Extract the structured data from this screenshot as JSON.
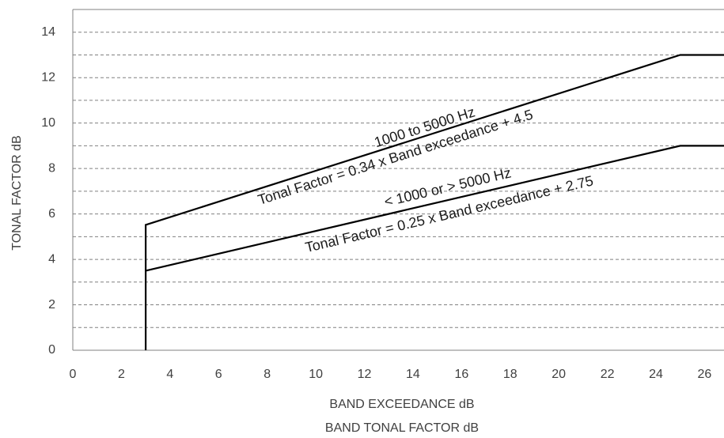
{
  "chart_data": {
    "type": "line",
    "x_label_lines": [
      "BAND EXCEEDANCE dB",
      "BAND TONAL FACTOR dB"
    ],
    "y_label": "TONAL FACTOR dB",
    "xlim": [
      0,
      26.8
    ],
    "ylim": [
      0,
      15
    ],
    "xticks": [
      0,
      2,
      4,
      6,
      8,
      10,
      12,
      14,
      16,
      18,
      20,
      22,
      24,
      26
    ],
    "yticks": [
      0,
      2,
      4,
      6,
      8,
      10,
      12,
      14
    ],
    "minor_yticks": [
      1,
      3,
      5,
      7,
      9,
      11,
      13
    ],
    "grid": true,
    "series": [
      {
        "color": "#000000",
        "x": [
          3,
          3,
          25,
          26.8
        ],
        "values": [
          0,
          5.52,
          13,
          13
        ]
      },
      {
        "color": "#000000",
        "x": [
          3,
          25,
          26.8
        ],
        "values": [
          3.5,
          9,
          9
        ]
      }
    ],
    "annotations": [
      "1000 to 5000 Hz",
      "Tonal Factor = 0.34 x Band exceedance + 4.5",
      "< 1000 or > 5000 Hz",
      "Tonal Factor = 0.25 x Band exceedance + 2.75"
    ]
  }
}
